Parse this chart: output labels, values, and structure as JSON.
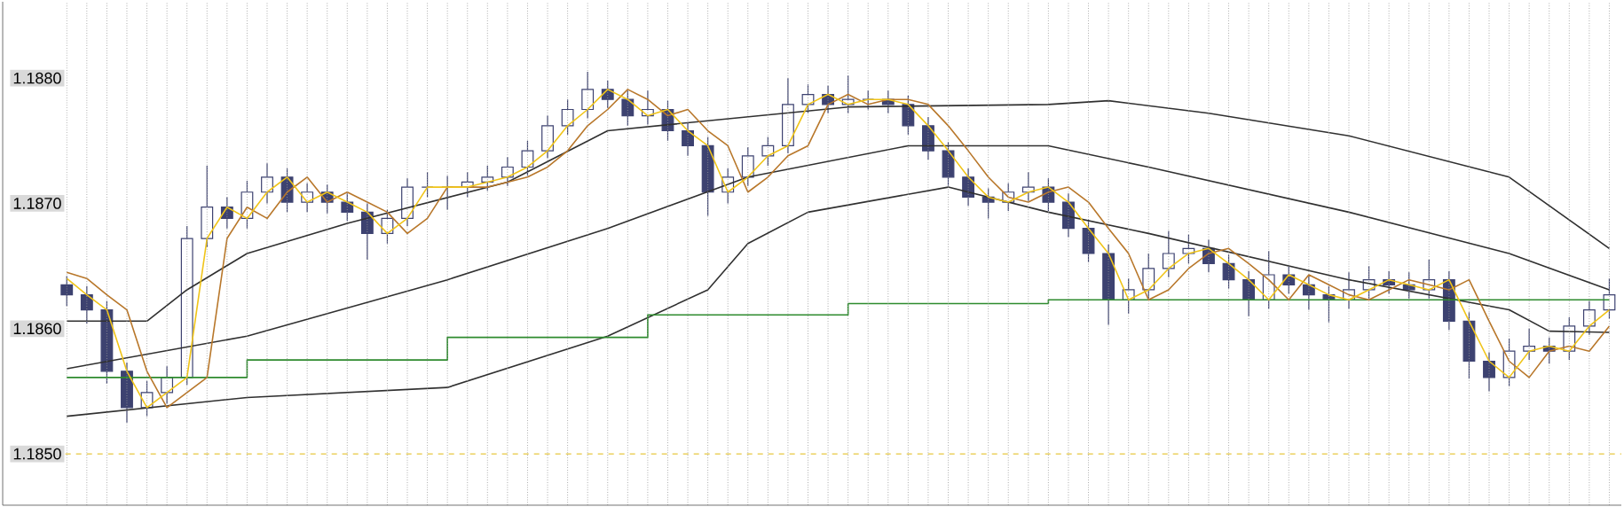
{
  "chart_data": {
    "type": "candlestick",
    "categories": [
      null,
      null,
      null,
      null,
      null,
      null,
      null,
      null,
      null,
      null,
      null,
      null,
      null,
      null,
      null,
      null,
      null,
      null,
      null,
      null,
      null,
      null,
      null,
      null,
      null,
      null,
      null,
      null,
      null,
      null,
      null,
      null,
      null,
      null,
      null,
      null,
      null,
      null,
      null,
      null,
      null,
      null,
      null,
      null,
      null,
      null,
      null,
      null,
      null,
      null,
      null,
      null,
      null,
      null,
      null,
      null,
      null,
      null,
      null,
      null,
      null,
      null,
      null,
      null,
      null,
      null,
      null,
      null,
      null,
      null,
      null,
      null,
      null,
      null,
      null,
      null,
      null,
      null
    ],
    "ylim": [
      1.18459,
      1.18861
    ],
    "yticks": [
      {
        "value": 1.185,
        "label": "1.1850"
      },
      {
        "value": 1.186,
        "label": "1.1860"
      },
      {
        "value": 1.187,
        "label": "1.1870"
      },
      {
        "value": 1.188,
        "label": "1.1880"
      }
    ],
    "tick_labels": "y",
    "grid": "x",
    "ref_lines": [
      {
        "axis": "y",
        "value": 1.185,
        "color": "#e8c840",
        "line_style": "dashed"
      }
    ],
    "series": [
      {
        "type": "line",
        "color": "#303030",
        "values": [
          1.18606,
          null,
          null,
          null,
          1.18606,
          null,
          1.18631,
          null,
          null,
          1.1866,
          null,
          null,
          null,
          null,
          1.18684,
          null,
          null,
          null,
          null,
          null,
          null,
          null,
          1.18717,
          null,
          null,
          null,
          null,
          1.18758,
          null,
          null,
          null,
          null,
          1.18766,
          null,
          null,
          null,
          null,
          null,
          null,
          1.18777,
          null,
          null,
          null,
          null,
          null,
          null,
          null,
          null,
          null,
          1.18779,
          null,
          null,
          1.18782,
          null,
          null,
          null,
          null,
          1.18772,
          null,
          null,
          null,
          null,
          null,
          null,
          1.18754,
          null,
          null,
          null,
          null,
          null,
          null,
          null,
          1.18721,
          null,
          null,
          null,
          null,
          1.18664
        ]
      },
      {
        "type": "line",
        "color": "#303030",
        "values": [
          1.18568,
          null,
          null,
          null,
          null,
          null,
          null,
          null,
          null,
          1.18594,
          null,
          null,
          null,
          null,
          null,
          null,
          null,
          null,
          null,
          1.18639,
          null,
          null,
          null,
          null,
          null,
          null,
          null,
          1.1868,
          null,
          null,
          null,
          null,
          null,
          null,
          1.18721,
          null,
          null,
          null,
          null,
          null,
          null,
          null,
          1.18746,
          null,
          null,
          null,
          null,
          null,
          null,
          1.18746,
          null,
          null,
          null,
          null,
          1.18729,
          null,
          null,
          null,
          null,
          null,
          null,
          null,
          null,
          null,
          1.18693,
          null,
          null,
          null,
          null,
          null,
          null,
          null,
          1.1866,
          null,
          null,
          null,
          null,
          1.18631
        ]
      },
      {
        "type": "line",
        "color": "#303030",
        "values": [
          1.1853,
          null,
          null,
          null,
          null,
          null,
          null,
          null,
          null,
          1.18545,
          null,
          null,
          null,
          null,
          null,
          null,
          null,
          null,
          null,
          1.18553,
          null,
          null,
          null,
          null,
          null,
          null,
          null,
          1.18594,
          null,
          null,
          null,
          null,
          1.18631,
          null,
          1.18668,
          null,
          null,
          1.18693,
          null,
          null,
          null,
          null,
          null,
          null,
          1.18713,
          null,
          null,
          null,
          null,
          1.18693,
          null,
          null,
          null,
          null,
          1.18676,
          null,
          null,
          null,
          null,
          null,
          null,
          null,
          null,
          null,
          1.18639,
          null,
          null,
          null,
          null,
          null,
          null,
          null,
          1.18615,
          null,
          1.18598,
          null,
          null,
          1.18597
        ]
      },
      {
        "type": "step",
        "color": "#2e8b2e",
        "values": [
          1.18561,
          null,
          null,
          null,
          null,
          null,
          null,
          null,
          null,
          1.18575,
          null,
          null,
          null,
          null,
          null,
          null,
          null,
          null,
          null,
          1.18593,
          null,
          null,
          null,
          null,
          null,
          null,
          null,
          null,
          null,
          1.18611,
          null,
          null,
          null,
          null,
          null,
          null,
          null,
          null,
          null,
          1.1862,
          null,
          null,
          null,
          null,
          null,
          null,
          null,
          null,
          null,
          1.18623,
          null,
          null,
          null,
          null,
          null,
          null,
          null,
          null,
          null,
          null,
          null,
          null,
          null,
          null,
          null,
          null,
          null,
          null,
          null,
          null,
          null,
          null,
          null,
          null,
          null,
          null,
          null,
          1.18623
        ]
      },
      {
        "type": "line",
        "color": "#b8772a",
        "values": [
          1.18645,
          1.1864,
          1.18627,
          1.18615,
          1.18566,
          1.18537,
          1.18549,
          1.18561,
          1.18672,
          1.18697,
          1.18688,
          1.18709,
          1.18721,
          1.18701,
          1.18709,
          1.18701,
          1.18693,
          1.18676,
          1.18688,
          1.18713,
          1.18713,
          1.18713,
          1.18717,
          1.18721,
          1.18729,
          1.18742,
          1.18762,
          1.18775,
          1.18791,
          1.18783,
          1.1877,
          1.18775,
          1.18758,
          1.18746,
          1.18709,
          1.18721,
          1.18738,
          1.18746,
          1.18779,
          1.18787,
          1.18779,
          1.18783,
          1.18783,
          1.18779,
          1.18762,
          1.18742,
          1.18721,
          1.18705,
          1.18701,
          1.18709,
          1.18713,
          1.18701,
          1.1868,
          1.1866,
          1.18623,
          1.18631,
          1.18648,
          1.1866,
          1.18664,
          1.18652,
          1.18639,
          1.18623,
          1.18643,
          1.18635,
          1.18627,
          1.18623,
          1.18631,
          1.18639,
          1.18635,
          1.18631,
          1.18639,
          1.18606,
          1.18574,
          1.18561,
          1.18582,
          1.18586,
          1.18582,
          1.18602
        ]
      },
      {
        "type": "line",
        "color": "#f0c419",
        "values": [
          1.1864,
          1.18627,
          1.18615,
          1.18566,
          1.18537,
          1.18549,
          1.18561,
          1.18672,
          1.18697,
          1.18688,
          1.18709,
          1.18721,
          1.18701,
          1.18709,
          1.18701,
          1.18693,
          1.18676,
          1.18688,
          1.18713,
          1.18713,
          1.18713,
          1.18717,
          1.18721,
          1.18729,
          1.18742,
          1.18762,
          1.18775,
          1.18791,
          1.18783,
          1.1877,
          1.18775,
          1.18758,
          1.18746,
          1.18709,
          1.18721,
          1.18738,
          1.18746,
          1.18779,
          1.18787,
          1.18779,
          1.18783,
          1.18783,
          1.18779,
          1.18762,
          1.18742,
          1.18721,
          1.18705,
          1.18701,
          1.18709,
          1.18713,
          1.18701,
          1.1868,
          1.1866,
          1.18623,
          1.18631,
          1.18648,
          1.1866,
          1.18664,
          1.18652,
          1.18639,
          1.18623,
          1.18643,
          1.18635,
          1.18627,
          1.18623,
          1.18631,
          1.18639,
          1.18635,
          1.18631,
          1.18639,
          1.18606,
          1.18574,
          1.18561,
          1.18582,
          1.18586,
          1.18582,
          1.18602,
          1.18615
        ]
      },
      {
        "color": "#3d4270",
        "ohlc": [
          [
            1.18635,
            1.18642,
            1.18618,
            1.18627
          ],
          [
            1.18627,
            1.18634,
            1.18604,
            1.18615
          ],
          [
            1.18615,
            1.18622,
            1.18556,
            1.18566
          ],
          [
            1.18566,
            1.18573,
            1.18525,
            1.18537
          ],
          [
            1.18537,
            1.18558,
            1.1853,
            1.18549
          ],
          [
            1.18549,
            1.1857,
            1.1854,
            1.18561
          ],
          [
            1.18561,
            1.18682,
            1.18555,
            1.18672
          ],
          [
            1.18672,
            1.1873,
            1.18665,
            1.18697
          ],
          [
            1.18697,
            1.18705,
            1.1868,
            1.18688
          ],
          [
            1.18688,
            1.18718,
            1.1868,
            1.18709
          ],
          [
            1.18709,
            1.18732,
            1.187,
            1.18721
          ],
          [
            1.18721,
            1.18728,
            1.18693,
            1.18701
          ],
          [
            1.18701,
            1.18716,
            1.18693,
            1.18709
          ],
          [
            1.18709,
            1.18715,
            1.18692,
            1.18701
          ],
          [
            1.18701,
            1.18708,
            1.18686,
            1.18693
          ],
          [
            1.18693,
            1.187,
            1.18655,
            1.18676
          ],
          [
            1.18676,
            1.18695,
            1.18668,
            1.18688
          ],
          [
            1.18688,
            1.1872,
            1.18682,
            1.18713
          ],
          [
            1.18713,
            1.18725,
            1.18705,
            1.18713
          ],
          [
            1.18713,
            1.18722,
            1.18695,
            1.18713
          ],
          [
            1.18713,
            1.18725,
            1.18705,
            1.18717
          ],
          [
            1.18717,
            1.1873,
            1.1871,
            1.18721
          ],
          [
            1.18721,
            1.18737,
            1.18714,
            1.18729
          ],
          [
            1.18729,
            1.1875,
            1.18722,
            1.18742
          ],
          [
            1.18742,
            1.1877,
            1.18736,
            1.18762
          ],
          [
            1.18762,
            1.18783,
            1.18755,
            1.18775
          ],
          [
            1.18775,
            1.18805,
            1.18768,
            1.18791
          ],
          [
            1.18791,
            1.18798,
            1.18776,
            1.18783
          ],
          [
            1.18783,
            1.1879,
            1.18762,
            1.1877
          ],
          [
            1.1877,
            1.1879,
            1.18763,
            1.18775
          ],
          [
            1.18775,
            1.18782,
            1.1875,
            1.18758
          ],
          [
            1.18758,
            1.18765,
            1.18738,
            1.18746
          ],
          [
            1.18746,
            1.18753,
            1.1869,
            1.18709
          ],
          [
            1.18709,
            1.18728,
            1.187,
            1.18721
          ],
          [
            1.18721,
            1.18745,
            1.18714,
            1.18738
          ],
          [
            1.18738,
            1.18753,
            1.1873,
            1.18746
          ],
          [
            1.18746,
            1.188,
            1.1874,
            1.18779
          ],
          [
            1.18779,
            1.18795,
            1.18772,
            1.18787
          ],
          [
            1.18787,
            1.18794,
            1.18772,
            1.18779
          ],
          [
            1.18779,
            1.18802,
            1.18772,
            1.18783
          ],
          [
            1.18783,
            1.1879,
            1.18775,
            1.18783
          ],
          [
            1.18783,
            1.1879,
            1.18772,
            1.18779
          ],
          [
            1.18779,
            1.18786,
            1.18755,
            1.18762
          ],
          [
            1.18762,
            1.18769,
            1.18735,
            1.18742
          ],
          [
            1.18742,
            1.18749,
            1.18714,
            1.18721
          ],
          [
            1.18721,
            1.18728,
            1.18698,
            1.18705
          ],
          [
            1.18705,
            1.18712,
            1.18688,
            1.18701
          ],
          [
            1.18701,
            1.18716,
            1.18694,
            1.18709
          ],
          [
            1.18709,
            1.18725,
            1.18702,
            1.18713
          ],
          [
            1.18713,
            1.1872,
            1.18694,
            1.18701
          ],
          [
            1.18701,
            1.18708,
            1.18673,
            1.1868
          ],
          [
            1.1868,
            1.18687,
            1.18653,
            1.1866
          ],
          [
            1.1866,
            1.18667,
            1.18603,
            1.18623
          ],
          [
            1.18623,
            1.1864,
            1.18612,
            1.18631
          ],
          [
            1.18631,
            1.1866,
            1.18624,
            1.18648
          ],
          [
            1.18648,
            1.18678,
            1.18641,
            1.1866
          ],
          [
            1.1866,
            1.18675,
            1.18652,
            1.18664
          ],
          [
            1.18664,
            1.18671,
            1.18645,
            1.18652
          ],
          [
            1.18652,
            1.18659,
            1.18632,
            1.18639
          ],
          [
            1.18639,
            1.18646,
            1.1861,
            1.18623
          ],
          [
            1.18623,
            1.18662,
            1.18616,
            1.18643
          ],
          [
            1.18643,
            1.1865,
            1.18628,
            1.18635
          ],
          [
            1.18635,
            1.18642,
            1.18615,
            1.18627
          ],
          [
            1.18627,
            1.18634,
            1.18605,
            1.18623
          ],
          [
            1.18623,
            1.18645,
            1.18616,
            1.18631
          ],
          [
            1.18631,
            1.1865,
            1.18624,
            1.18639
          ],
          [
            1.18639,
            1.18646,
            1.18628,
            1.18635
          ],
          [
            1.18635,
            1.18645,
            1.18624,
            1.18631
          ],
          [
            1.18631,
            1.18655,
            1.18624,
            1.18639
          ],
          [
            1.18639,
            1.18646,
            1.18599,
            1.18606
          ],
          [
            1.18606,
            1.18613,
            1.1856,
            1.18574
          ],
          [
            1.18574,
            1.18581,
            1.1855,
            1.18561
          ],
          [
            1.18561,
            1.18592,
            1.18554,
            1.18582
          ],
          [
            1.18582,
            1.186,
            1.18575,
            1.18586
          ],
          [
            1.18586,
            1.18593,
            1.18572,
            1.18582
          ],
          [
            1.18582,
            1.18609,
            1.18575,
            1.18602
          ],
          [
            1.18602,
            1.18622,
            1.18595,
            1.18615
          ],
          [
            1.18615,
            1.1864,
            1.18608,
            1.18627
          ]
        ]
      }
    ]
  }
}
